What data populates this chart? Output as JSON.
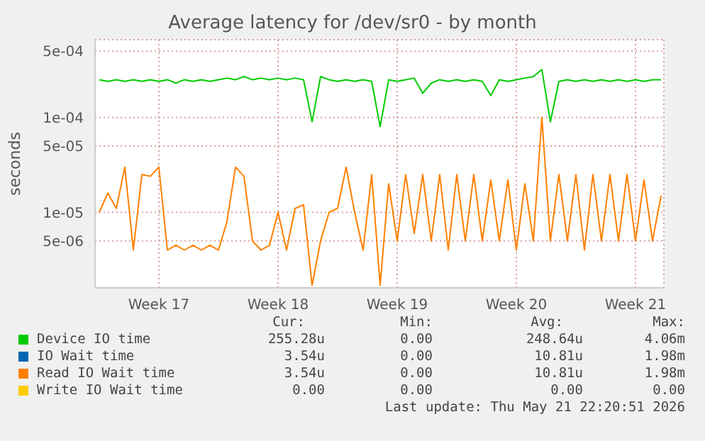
{
  "chart_data": {
    "type": "line",
    "title": "Average latency for /dev/sr0 - by month",
    "ylabel": "seconds",
    "log": "y",
    "grid": true,
    "legend": "bottom",
    "marker": "none",
    "line_style": "solid",
    "xlim": [
      "2026-04-19T18:00",
      "2026-05-23T04:00"
    ],
    "xticks": [
      {
        "value": "2026-04-23T12:00",
        "label": "Week 17"
      },
      {
        "value": "2026-04-30T12:00",
        "label": "Week 18"
      },
      {
        "value": "2026-05-07T12:00",
        "label": "Week 19"
      },
      {
        "value": "2026-05-14T12:00",
        "label": "Week 20"
      },
      {
        "value": "2026-05-21T12:00",
        "label": "Week 21"
      }
    ],
    "ylim": [
      1.6e-06,
      0.00066
    ],
    "yticks": [
      {
        "value": 5e-06,
        "label": "5e-06"
      },
      {
        "value": 1e-05,
        "label": "1e-05"
      },
      {
        "value": 5e-05,
        "label": "5e-05"
      },
      {
        "value": 0.0001,
        "label": "1e-04"
      },
      {
        "value": 0.0005,
        "label": "5e-04"
      }
    ],
    "x": [
      "2026-04-20T00:00",
      "2026-04-20T12:00",
      "2026-04-21T00:00",
      "2026-04-21T12:00",
      "2026-04-22T00:00",
      "2026-04-22T12:00",
      "2026-04-23T00:00",
      "2026-04-23T12:00",
      "2026-04-24T00:00",
      "2026-04-24T12:00",
      "2026-04-25T00:00",
      "2026-04-25T12:00",
      "2026-04-26T00:00",
      "2026-04-26T12:00",
      "2026-04-27T00:00",
      "2026-04-27T12:00",
      "2026-04-28T00:00",
      "2026-04-28T12:00",
      "2026-04-29T00:00",
      "2026-04-29T12:00",
      "2026-04-30T00:00",
      "2026-04-30T12:00",
      "2026-05-01T00:00",
      "2026-05-01T12:00",
      "2026-05-02T00:00",
      "2026-05-02T12:00",
      "2026-05-03T00:00",
      "2026-05-03T12:00",
      "2026-05-04T00:00",
      "2026-05-04T12:00",
      "2026-05-05T00:00",
      "2026-05-05T12:00",
      "2026-05-06T00:00",
      "2026-05-06T12:00",
      "2026-05-07T00:00",
      "2026-05-07T12:00",
      "2026-05-08T00:00",
      "2026-05-08T12:00",
      "2026-05-09T00:00",
      "2026-05-09T12:00",
      "2026-05-10T00:00",
      "2026-05-10T12:00",
      "2026-05-11T00:00",
      "2026-05-11T12:00",
      "2026-05-12T00:00",
      "2026-05-12T12:00",
      "2026-05-13T00:00",
      "2026-05-13T12:00",
      "2026-05-14T00:00",
      "2026-05-14T12:00",
      "2026-05-15T00:00",
      "2026-05-15T12:00",
      "2026-05-16T00:00",
      "2026-05-16T12:00",
      "2026-05-17T00:00",
      "2026-05-17T12:00",
      "2026-05-18T00:00",
      "2026-05-18T12:00",
      "2026-05-19T00:00",
      "2026-05-19T12:00",
      "2026-05-20T00:00",
      "2026-05-20T12:00",
      "2026-05-21T00:00",
      "2026-05-21T12:00",
      "2026-05-22T00:00",
      "2026-05-22T12:00",
      "2026-05-23T00:00"
    ],
    "series": [
      {
        "name": "Device IO time",
        "color": "#00cc00",
        "values": [
          0.00025,
          0.00024,
          0.00025,
          0.00024,
          0.00025,
          0.00024,
          0.00025,
          0.00024,
          0.00025,
          0.00023,
          0.00025,
          0.00024,
          0.00025,
          0.00024,
          0.00025,
          0.00026,
          0.00025,
          0.00027,
          0.00025,
          0.00026,
          0.00025,
          0.00026,
          0.00025,
          0.00026,
          0.00025,
          9e-05,
          0.00027,
          0.00025,
          0.00024,
          0.00025,
          0.00024,
          0.00025,
          0.00024,
          8e-05,
          0.00025,
          0.00024,
          0.00025,
          0.00026,
          0.00018,
          0.00023,
          0.00025,
          0.00024,
          0.00025,
          0.00024,
          0.00025,
          0.00024,
          0.00017,
          0.00025,
          0.00024,
          0.00025,
          0.00026,
          0.00027,
          0.00032,
          9e-05,
          0.00024,
          0.00025,
          0.00024,
          0.00025,
          0.00024,
          0.00025,
          0.00024,
          0.00025,
          0.00024,
          0.00025,
          0.00024,
          0.00025,
          0.00025
        ]
      },
      {
        "name": "IO Wait time",
        "color": "#0066b3",
        "values": [
          null,
          null,
          null,
          null,
          null,
          null,
          null,
          null,
          null,
          null,
          null,
          null,
          null,
          null,
          null,
          null,
          null,
          null,
          null,
          null,
          null,
          null,
          null,
          null,
          null,
          null,
          null,
          null,
          null,
          null,
          null,
          null,
          null,
          null,
          null,
          null,
          null,
          null,
          null,
          null,
          null,
          null,
          null,
          null,
          null,
          null,
          null,
          null,
          null,
          null,
          null,
          null,
          null,
          null,
          null,
          null,
          null,
          null,
          null,
          null,
          null,
          null,
          null,
          null,
          null,
          null,
          null
        ]
      },
      {
        "name": "Read IO Wait time",
        "color": "#ff8000",
        "values": [
          1e-05,
          1.6e-05,
          1.1e-05,
          3e-05,
          4e-06,
          2.5e-05,
          2.4e-05,
          3e-05,
          4e-06,
          4.5e-06,
          4e-06,
          4.5e-06,
          4e-06,
          4.5e-06,
          4e-06,
          8e-06,
          3e-05,
          2.4e-05,
          5e-06,
          4e-06,
          4.5e-06,
          1e-05,
          4e-06,
          1.1e-05,
          1.2e-05,
          1.7e-06,
          5e-06,
          1e-05,
          1.1e-05,
          3e-05,
          1e-05,
          4e-06,
          2.5e-05,
          1.7e-06,
          2e-05,
          5e-06,
          2.5e-05,
          6e-06,
          2.5e-05,
          5e-06,
          2.5e-05,
          4e-06,
          2.5e-05,
          5e-06,
          2.5e-05,
          5e-06,
          2.2e-05,
          5e-06,
          2.2e-05,
          4e-06,
          2e-05,
          5e-06,
          0.0001,
          5e-06,
          2.5e-05,
          5e-06,
          2.5e-05,
          4e-06,
          2.5e-05,
          5e-06,
          2.5e-05,
          5e-06,
          2.5e-05,
          5e-06,
          2.2e-05,
          5e-06,
          1.5e-05
        ]
      },
      {
        "name": "Write IO Wait time",
        "color": "#ffcc00",
        "values": [
          null,
          null,
          null,
          null,
          null,
          null,
          null,
          null,
          null,
          null,
          null,
          null,
          null,
          null,
          null,
          null,
          null,
          null,
          null,
          null,
          null,
          null,
          null,
          null,
          null,
          null,
          null,
          null,
          null,
          null,
          null,
          null,
          null,
          null,
          null,
          null,
          null,
          null,
          null,
          null,
          null,
          null,
          null,
          null,
          null,
          null,
          null,
          null,
          null,
          null,
          null,
          null,
          null,
          null,
          null,
          null,
          null,
          null,
          null,
          null,
          null,
          null,
          null,
          null,
          null,
          null,
          null
        ]
      }
    ],
    "annotations": [
      "Cur:",
      "Min:",
      "Avg:",
      "Max:",
      "255.28u",
      "0.00",
      "248.64u",
      "4.06m",
      "3.54u",
      "0.00",
      "10.81u",
      "1.98m",
      "3.54u",
      "0.00",
      "10.81u",
      "1.98m",
      "0.00",
      "0.00",
      "0.00",
      "0.00",
      "Last update: Thu May 21 22:20:51 2026"
    ]
  }
}
